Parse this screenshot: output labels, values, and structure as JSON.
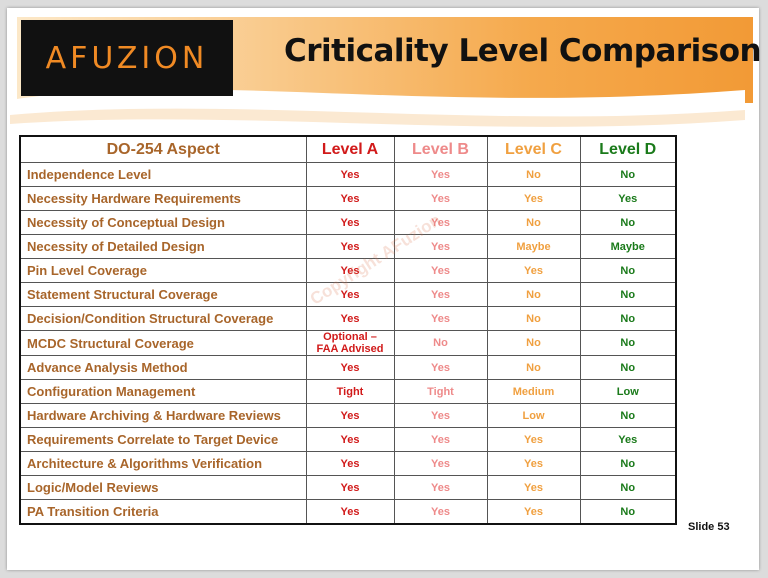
{
  "brand": {
    "logo_text": "AFUZION"
  },
  "header": {
    "title": "Criticality Level Comparison"
  },
  "table": {
    "columns": [
      "DO-254 Aspect",
      "Level A",
      "Level B",
      "Level C",
      "Level D"
    ],
    "rows": [
      {
        "aspect": "Independence Level",
        "a": "Yes",
        "b": "Yes",
        "c": "No",
        "d": "No"
      },
      {
        "aspect": "Necessity Hardware Requirements",
        "a": "Yes",
        "b": "Yes",
        "c": "Yes",
        "d": "Yes"
      },
      {
        "aspect": "Necessity of Conceptual Design",
        "a": "Yes",
        "b": "Yes",
        "c": "No",
        "d": "No"
      },
      {
        "aspect": "Necessity of Detailed Design",
        "a": "Yes",
        "b": "Yes",
        "c": "Maybe",
        "d": "Maybe"
      },
      {
        "aspect": "Pin Level Coverage",
        "a": "Yes",
        "b": "Yes",
        "c": "Yes",
        "d": "No"
      },
      {
        "aspect": "Statement Structural Coverage",
        "a": "Yes",
        "b": "Yes",
        "c": "No",
        "d": "No"
      },
      {
        "aspect": "Decision/Condition Structural Coverage",
        "a": "Yes",
        "b": "Yes",
        "c": "No",
        "d": "No"
      },
      {
        "aspect": "MCDC Structural Coverage",
        "a_line1": "Optional –",
        "a_line2": "FAA Advised",
        "b": "No",
        "c": "No",
        "d": "No"
      },
      {
        "aspect": "Advance Analysis Method",
        "a": "Yes",
        "b": "Yes",
        "c": "No",
        "d": "No"
      },
      {
        "aspect": "Configuration Management",
        "a": "Tight",
        "b": "Tight",
        "c": "Medium",
        "d": "Low"
      },
      {
        "aspect": "Hardware Archiving & Hardware Reviews",
        "a": "Yes",
        "b": "Yes",
        "c": "Low",
        "d": "No"
      },
      {
        "aspect": "Requirements Correlate to Target Device",
        "a": "Yes",
        "b": "Yes",
        "c": "Yes",
        "d": "Yes"
      },
      {
        "aspect": "Architecture & Algorithms Verification",
        "a": "Yes",
        "b": "Yes",
        "c": "Yes",
        "d": "No"
      },
      {
        "aspect": "Logic/Model Reviews",
        "a": "Yes",
        "b": "Yes",
        "c": "Yes",
        "d": "No"
      },
      {
        "aspect": "PA Transition Criteria",
        "a": "Yes",
        "b": "Yes",
        "c": "Yes",
        "d": "No"
      }
    ]
  },
  "watermark": "Copyright AFuzion",
  "footer": {
    "slide_label": "Slide  53"
  },
  "colors": {
    "level_a": "#d11a1a",
    "level_b": "#ee8a8a",
    "level_c": "#f0a040",
    "level_d": "#1a7a1a",
    "aspect": "#a8652a",
    "logo": "#f08a24"
  }
}
